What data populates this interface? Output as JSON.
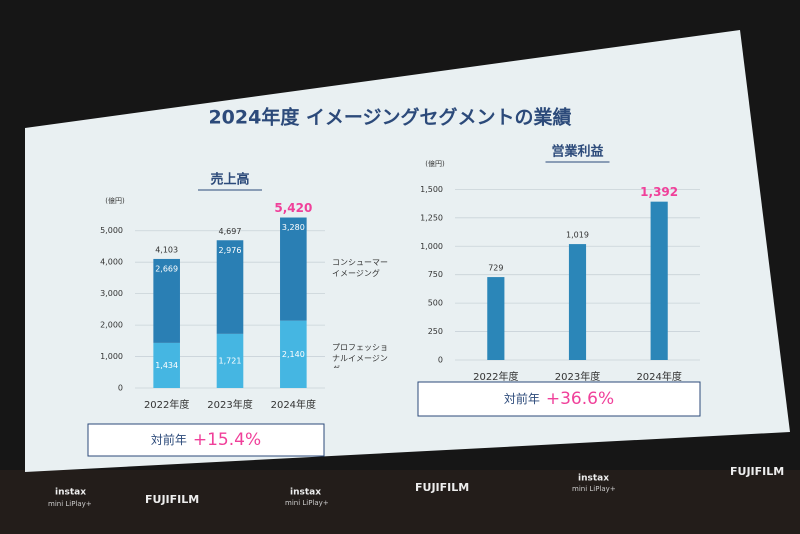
{
  "title": "2024年度 イメージングセグメントの業績",
  "logos": [
    "instax",
    "mini LiPlay+",
    "FUJIFILM"
  ],
  "chart_data": [
    {
      "type": "bar",
      "stacked": true,
      "title": "売上高",
      "y_unit": "(億円)",
      "categories": [
        "2022年度",
        "2023年度",
        "2024年度"
      ],
      "series": [
        {
          "name": "プロフェッショナルイメージング",
          "color": "#45b6e2",
          "values": [
            1434,
            1721,
            2140
          ],
          "value_labels": [
            "1,434",
            "1,721",
            "2,140"
          ]
        },
        {
          "name": "コンシューマーイメージング",
          "color": "#2a7fb4",
          "values": [
            2669,
            2976,
            3280
          ],
          "value_labels": [
            "2,669",
            "2,976",
            "3,280"
          ]
        }
      ],
      "totals": [
        4103,
        4697,
        5420
      ],
      "total_labels": [
        "4,103",
        "4,697",
        "5,420"
      ],
      "ylim": [
        0,
        5500
      ],
      "yticks": [
        0,
        {
          "value": 1000,
          "label": "1,000"
        },
        {
          "value": 2000,
          "label": "2,000"
        },
        {
          "value": 3000,
          "label": "3,000"
        },
        {
          "value": 4000,
          "label": "4,000"
        },
        {
          "value": 5000,
          "label": "5,000"
        }
      ],
      "grid": true,
      "highlight": "#f0409a",
      "growth_label": "対前年",
      "growth": "+15.4%"
    },
    {
      "type": "bar",
      "title": "営業利益",
      "y_unit": "(億円)",
      "categories": [
        "2022年度",
        "2023年度",
        "2024年度"
      ],
      "values": [
        729,
        1019,
        1392
      ],
      "value_labels": [
        "729",
        "1,019",
        "1,392"
      ],
      "color": "#2b86b8",
      "ylim": [
        0,
        1600
      ],
      "yticks": [
        0,
        250,
        500,
        750,
        {
          "value": 1000,
          "label": "1,000"
        },
        {
          "value": 1250,
          "label": "1,250"
        },
        {
          "value": 1500,
          "label": "1,500"
        }
      ],
      "grid": true,
      "highlight": "#f0409a",
      "growth_label": "対前年",
      "growth": "+36.6%"
    }
  ]
}
